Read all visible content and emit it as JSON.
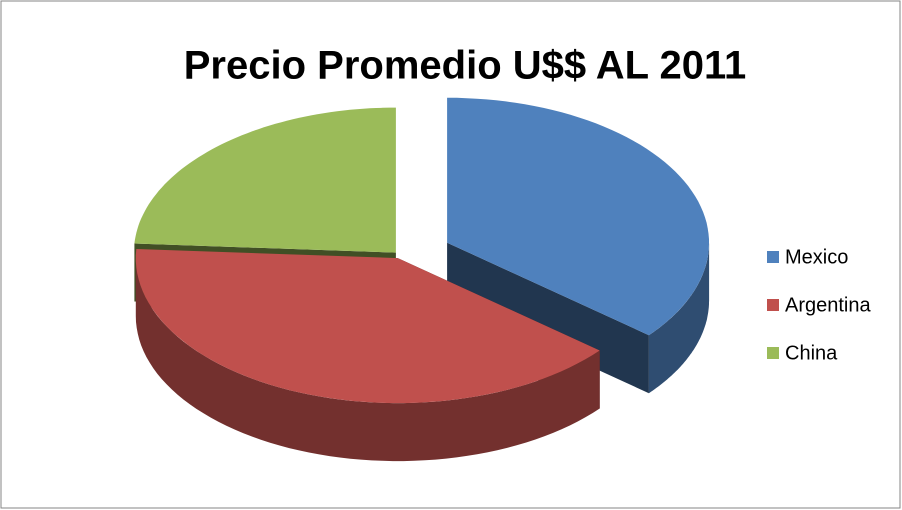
{
  "chart_data": {
    "type": "pie",
    "title": "Precio Promedio U$$ AL 2011",
    "categories": [
      "Mexico",
      "Argentina",
      "China"
    ],
    "values": [
      36,
      40,
      24
    ],
    "colors": [
      "#4f81bd",
      "#c0504d",
      "#9bbb59"
    ],
    "legend": "right"
  }
}
